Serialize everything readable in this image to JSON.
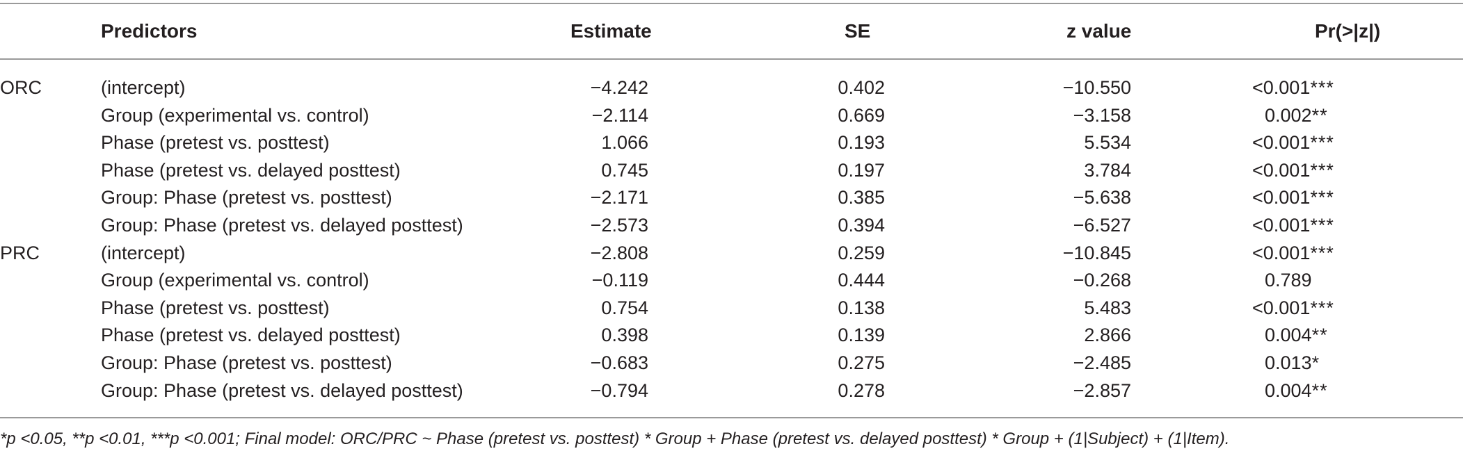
{
  "table": {
    "headers": {
      "predictors": "Predictors",
      "estimate": "Estimate",
      "se": "SE",
      "z_value": "z value",
      "p_value": "Pr(>|z|)"
    },
    "groups": [
      {
        "label": "ORC",
        "rows": [
          {
            "predictor": "(intercept)",
            "estimate": "−4.242",
            "se": "0.402",
            "z": "−10.550",
            "p": "<0.001",
            "sig": "***"
          },
          {
            "predictor": "Group (experimental vs. control)",
            "estimate": "−2.114",
            "se": "0.669",
            "z": "−3.158",
            "p": "0.002",
            "sig": "**"
          },
          {
            "predictor": "Phase (pretest vs. posttest)",
            "estimate": "1.066",
            "se": "0.193",
            "z": "5.534",
            "p": "<0.001",
            "sig": "***"
          },
          {
            "predictor": "Phase (pretest vs. delayed posttest)",
            "estimate": "0.745",
            "se": "0.197",
            "z": "3.784",
            "p": "<0.001",
            "sig": "***"
          },
          {
            "predictor": "Group: Phase (pretest vs. posttest)",
            "estimate": "−2.171",
            "se": "0.385",
            "z": "−5.638",
            "p": "<0.001",
            "sig": "***"
          },
          {
            "predictor": "Group: Phase (pretest vs. delayed posttest)",
            "estimate": "−2.573",
            "se": "0.394",
            "z": "−6.527",
            "p": "<0.001",
            "sig": "***"
          }
        ]
      },
      {
        "label": "PRC",
        "rows": [
          {
            "predictor": "(intercept)",
            "estimate": "−2.808",
            "se": "0.259",
            "z": "−10.845",
            "p": "<0.001",
            "sig": "***"
          },
          {
            "predictor": "Group (experimental vs. control)",
            "estimate": "−0.119",
            "se": "0.444",
            "z": "−0.268",
            "p": "0.789",
            "sig": ""
          },
          {
            "predictor": "Phase (pretest vs. posttest)",
            "estimate": "0.754",
            "se": "0.138",
            "z": "5.483",
            "p": "<0.001",
            "sig": "***"
          },
          {
            "predictor": "Phase (pretest vs. delayed posttest)",
            "estimate": "0.398",
            "se": "0.139",
            "z": "2.866",
            "p": "0.004",
            "sig": "**"
          },
          {
            "predictor": "Group: Phase (pretest vs. posttest)",
            "estimate": "−0.683",
            "se": "0.275",
            "z": "−2.485",
            "p": "0.013",
            "sig": "*"
          },
          {
            "predictor": "Group: Phase (pretest vs. delayed posttest)",
            "estimate": "−0.794",
            "se": "0.278",
            "z": "−2.857",
            "p": "0.004",
            "sig": "**"
          }
        ]
      }
    ],
    "footnote": "*p <0.05, **p <0.01, ***p <0.001; Final model: ORC/PRC ~ Phase (pretest vs. posttest) * Group + Phase (pretest vs. delayed posttest) * Group + (1|Subject) + (1|Item)."
  }
}
